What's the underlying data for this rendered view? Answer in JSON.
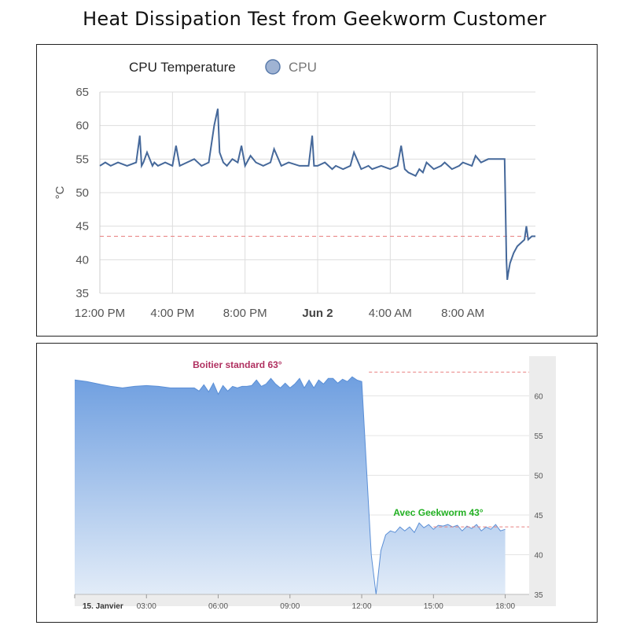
{
  "title": "Heat Dissipation Test from Geekworm Customer",
  "colors": {
    "cpu_line": "#45689a",
    "legend_fill": "#9fb3d3",
    "legend_stroke": "#5a7bab",
    "threshold_line": "#e88080",
    "area_top": "#6f9fe0",
    "area_bottom": "#e2ecf8",
    "annotation_standard": "#b03060",
    "annotation_geekworm": "#22b022"
  },
  "chart_data": [
    {
      "type": "line",
      "legend_title": "CPU Temperature",
      "ylabel": "°C",
      "ylim": [
        35,
        65
      ],
      "yticks": [
        35,
        40,
        45,
        50,
        55,
        60,
        65
      ],
      "xlim_hours": [
        0,
        24
      ],
      "x_tick_labels": [
        {
          "label": "12:00 PM",
          "hour": 0,
          "bold": false
        },
        {
          "label": "4:00 PM",
          "hour": 4,
          "bold": false
        },
        {
          "label": "8:00 PM",
          "hour": 8,
          "bold": false
        },
        {
          "label": "Jun 2",
          "hour": 12,
          "bold": true
        },
        {
          "label": "4:00 AM",
          "hour": 16,
          "bold": false
        },
        {
          "label": "8:00 AM",
          "hour": 20,
          "bold": false
        }
      ],
      "threshold": 43.5,
      "grid": true,
      "legend_position": "top-left",
      "series": [
        {
          "name": "CPU",
          "x": [
            0,
            0.3,
            0.6,
            1.0,
            1.5,
            2.0,
            2.2,
            2.3,
            2.4,
            2.6,
            2.9,
            3.0,
            3.2,
            3.6,
            4.0,
            4.2,
            4.4,
            4.8,
            5.2,
            5.6,
            6.0,
            6.3,
            6.5,
            6.6,
            6.8,
            7.0,
            7.3,
            7.6,
            7.8,
            8.0,
            8.3,
            8.6,
            9.0,
            9.4,
            9.6,
            10.0,
            10.4,
            11.0,
            11.5,
            11.7,
            11.8,
            12.0,
            12.4,
            12.8,
            13.0,
            13.4,
            13.8,
            14.0,
            14.4,
            14.8,
            15.0,
            15.5,
            16.0,
            16.4,
            16.6,
            16.8,
            17.0,
            17.4,
            17.6,
            17.8,
            18.0,
            18.4,
            18.8,
            19.0,
            19.4,
            19.8,
            20.0,
            20.5,
            20.7,
            21.0,
            21.4,
            21.8,
            22.0,
            22.3,
            22.35,
            22.4,
            22.45,
            22.5,
            22.6,
            22.8,
            23.0,
            23.2,
            23.4,
            23.5,
            23.6,
            23.8,
            24.0
          ],
          "y": [
            54.0,
            54.5,
            54.0,
            54.5,
            54.0,
            54.5,
            58.5,
            54.0,
            54.5,
            56.0,
            54.0,
            54.5,
            54.0,
            54.5,
            54.0,
            57.0,
            54.0,
            54.5,
            55.0,
            54.0,
            54.5,
            60.0,
            62.5,
            56.0,
            54.5,
            54.0,
            55.0,
            54.5,
            57.0,
            54.0,
            55.5,
            54.5,
            54.0,
            54.5,
            56.5,
            54.0,
            54.5,
            54.0,
            54.0,
            58.5,
            54.0,
            54.0,
            54.5,
            53.5,
            54.0,
            53.5,
            54.0,
            56.0,
            53.5,
            54.0,
            53.5,
            54.0,
            53.5,
            54.0,
            57.0,
            53.5,
            53.0,
            52.5,
            53.5,
            53.0,
            54.5,
            53.5,
            54.0,
            54.5,
            53.5,
            54.0,
            54.5,
            54.0,
            55.5,
            54.5,
            55.0,
            55.0,
            55.0,
            55.0,
            48.0,
            40.0,
            37.0,
            38.0,
            39.5,
            41.0,
            42.0,
            42.5,
            43.0,
            45.0,
            43.0,
            43.5,
            43.5
          ]
        }
      ]
    },
    {
      "type": "area",
      "ylim": [
        35,
        65
      ],
      "yticks": [
        35,
        40,
        45,
        50,
        55,
        60
      ],
      "xlim_hours": [
        0,
        19
      ],
      "x_tick_labels": [
        {
          "label": "15. Janvier",
          "hour": 0,
          "bold": true
        },
        {
          "label": "03:00",
          "hour": 3,
          "bold": false
        },
        {
          "label": "06:00",
          "hour": 6,
          "bold": false
        },
        {
          "label": "09:00",
          "hour": 9,
          "bold": false
        },
        {
          "label": "12:00",
          "hour": 12,
          "bold": false
        },
        {
          "label": "15:00",
          "hour": 15,
          "bold": false
        },
        {
          "label": "18:00",
          "hour": 18,
          "bold": false
        }
      ],
      "grid": true,
      "legend_position": "none",
      "annotations": [
        {
          "text": "Boitier standard 63°",
          "level": 63,
          "hour": 6.8
        },
        {
          "text": "Avec Geekworm 43°",
          "level": 43.5,
          "hour": 15.2
        }
      ],
      "series": [
        {
          "x": [
            0,
            0.5,
            1.0,
            1.5,
            2.0,
            2.5,
            3.0,
            3.5,
            4.0,
            4.5,
            5.0,
            5.2,
            5.4,
            5.6,
            5.8,
            6.0,
            6.2,
            6.4,
            6.6,
            6.8,
            7.0,
            7.2,
            7.4,
            7.6,
            7.8,
            8.0,
            8.2,
            8.4,
            8.6,
            8.8,
            9.0,
            9.2,
            9.4,
            9.6,
            9.8,
            10.0,
            10.2,
            10.4,
            10.6,
            10.8,
            11.0,
            11.2,
            11.4,
            11.6,
            11.8,
            12.0,
            12.2,
            12.4,
            12.6,
            12.8,
            13.0,
            13.2,
            13.4,
            13.6,
            13.8,
            14.0,
            14.2,
            14.4,
            14.6,
            14.8,
            15.0,
            15.2,
            15.4,
            15.6,
            15.8,
            16.0,
            16.2,
            16.4,
            16.6,
            16.8,
            17.0,
            17.2,
            17.4,
            17.6,
            17.8,
            18.0
          ],
          "y": [
            62.0,
            61.8,
            61.5,
            61.2,
            61.0,
            61.2,
            61.3,
            61.2,
            61.0,
            61.0,
            61.0,
            60.6,
            61.4,
            60.5,
            61.6,
            60.2,
            61.3,
            60.6,
            61.2,
            61.0,
            61.2,
            61.2,
            61.3,
            62.0,
            61.2,
            61.5,
            62.2,
            61.5,
            61.0,
            61.6,
            61.0,
            61.5,
            62.2,
            61.0,
            62.0,
            61.0,
            62.0,
            61.5,
            62.2,
            62.2,
            61.6,
            62.1,
            61.8,
            62.4,
            62.0,
            61.8,
            51.0,
            40.0,
            35.0,
            40.5,
            42.5,
            43.0,
            42.8,
            43.5,
            43.0,
            43.5,
            42.8,
            44.0,
            43.4,
            43.8,
            43.2,
            43.7,
            43.6,
            43.8,
            43.5,
            43.7,
            43.0,
            43.6,
            43.3,
            43.8,
            43.0,
            43.5,
            43.2,
            43.8,
            43.0,
            43.2
          ]
        }
      ]
    }
  ]
}
